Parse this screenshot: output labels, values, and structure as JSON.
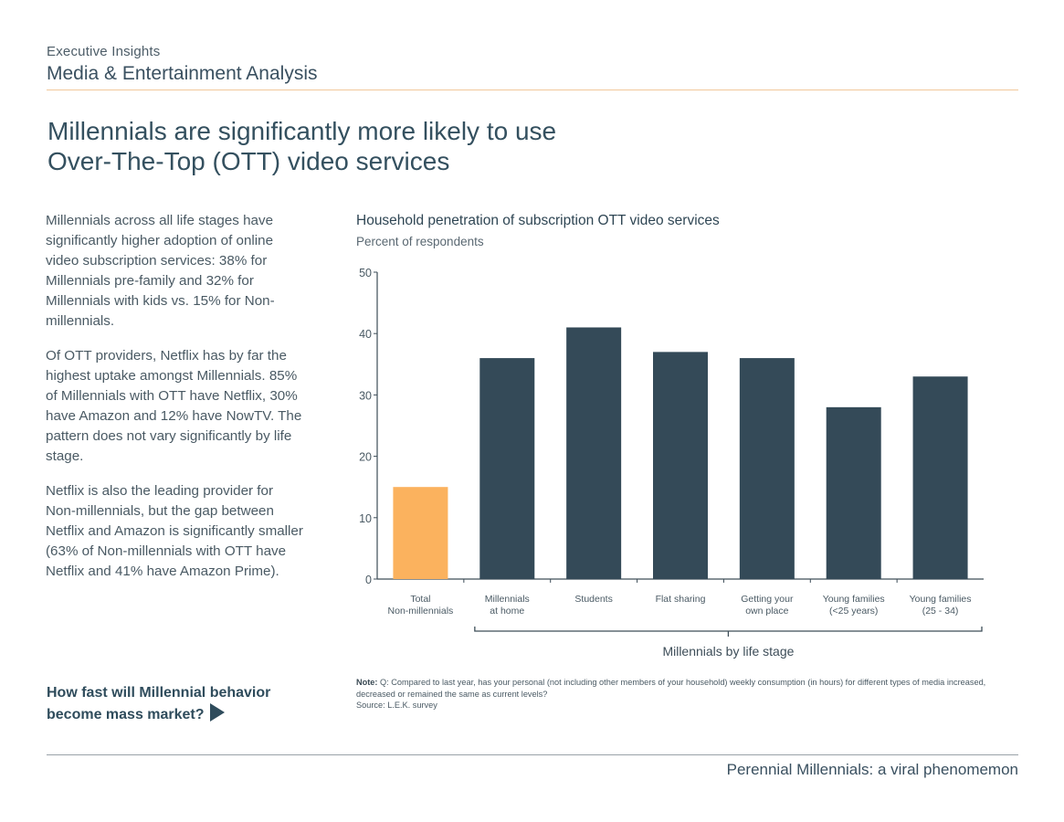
{
  "header": {
    "kicker": "Executive Insights",
    "section": "Media & Entertainment Analysis"
  },
  "headline": {
    "line1": "Millennials are significantly more likely to use",
    "line2": "Over-The-Top (OTT) video services"
  },
  "body": {
    "paragraphs": [
      "Millennials across all life stages have significantly higher adoption of online video subscription services: 38% for Millennials pre-family and 32% for Millennials with kids vs. 15% for Non-millennials.",
      "Of OTT providers, Netflix has by far the highest uptake amongst Millennials. 85% of Millennials with OTT have Netflix, 30% have Amazon and 12% have NowTV. The pattern does not vary significantly by life stage.",
      "Netflix is also the leading provider for Non-millennials, but the gap between Netflix and Amazon is significantly smaller (63% of Non-millennials with OTT have Netflix and 41% have Amazon Prime)."
    ]
  },
  "cta": {
    "line1": "How fast will Millennial behavior",
    "line2": "become mass market?",
    "icon": "play-arrow-icon"
  },
  "chart_data": {
    "type": "bar",
    "title": "Household penetration of subscription OTT video services",
    "subtitle": "Percent of respondents",
    "categories": [
      [
        "Total",
        "Non-millennials"
      ],
      [
        "Millennials",
        "at home"
      ],
      [
        "Students"
      ],
      [
        "Flat sharing"
      ],
      [
        "Getting your",
        "own place"
      ],
      [
        "Young families",
        "(<25 years)"
      ],
      [
        "Young families",
        "(25 - 34)"
      ]
    ],
    "values": [
      15,
      36,
      41,
      37,
      36,
      28,
      33
    ],
    "colors": [
      "#fbb25e",
      "#344a58",
      "#344a58",
      "#344a58",
      "#344a58",
      "#344a58",
      "#344a58"
    ],
    "ylim": [
      0,
      50
    ],
    "yticks": [
      0,
      10,
      20,
      30,
      40,
      50
    ],
    "group_label": "Millennials by life stage",
    "grid": false
  },
  "note": {
    "label": "Note:",
    "text": " Q: Compared to last year, has your personal (not including other members of your household) weekly consumption (in hours) for different types of media increased, decreased or remained the same as current levels?",
    "source": "Source: L.E.K. survey"
  },
  "footer": {
    "text": "Perennial Millennials: a viral phenomemon"
  }
}
